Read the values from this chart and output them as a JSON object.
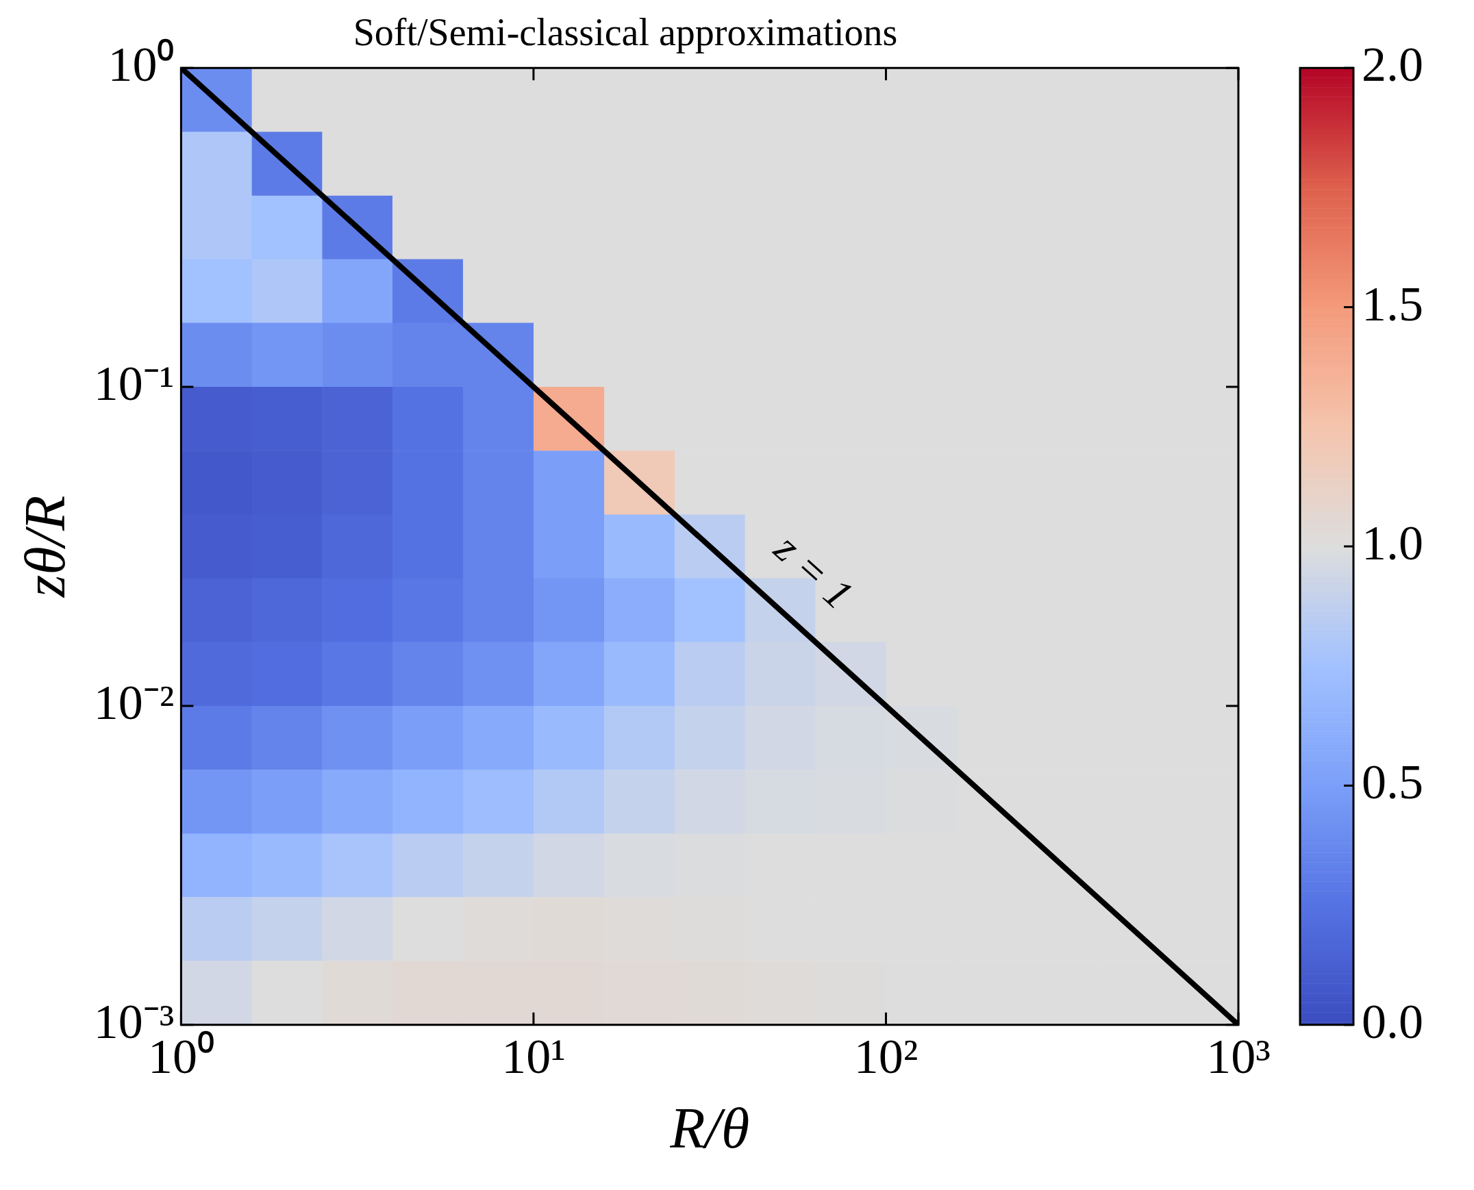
{
  "chart_data": {
    "type": "heatmap",
    "title": "Soft/Semi-classical approximations",
    "xlabel": "R/θ",
    "ylabel": "zθ/R",
    "log": "xy",
    "xlim": [
      1,
      1000
    ],
    "ylim": [
      0.001,
      1
    ],
    "xticks": [
      {
        "value": 1,
        "label": "10⁰"
      },
      {
        "value": 10,
        "label": "10¹"
      },
      {
        "value": 100,
        "label": "10²"
      },
      {
        "value": 1000,
        "label": "10³"
      }
    ],
    "yticks": [
      {
        "value": 0.001,
        "label": "10⁻³"
      },
      {
        "value": 0.01,
        "label": "10⁻²"
      },
      {
        "value": 0.1,
        "label": "10⁻¹"
      },
      {
        "value": 1,
        "label": "10⁰"
      }
    ],
    "clim": [
      0,
      2
    ],
    "cticks": [
      {
        "value": 0,
        "label": "0.0"
      },
      {
        "value": 0.5,
        "label": "0.5"
      },
      {
        "value": 1,
        "label": "1.0"
      },
      {
        "value": 1.5,
        "label": "1.5"
      },
      {
        "value": 2,
        "label": "2.0"
      }
    ],
    "x": [
      1.26,
      2,
      3.16,
      5.01,
      7.94,
      12.6,
      20,
      31.6,
      50.1,
      79.4,
      126,
      200,
      316,
      501,
      794
    ],
    "y": [
      0.794,
      0.501,
      0.316,
      0.2,
      0.126,
      0.0794,
      0.0501,
      0.0316,
      0.02,
      0.0126,
      0.00794,
      0.00501,
      0.00316,
      0.002,
      0.00126
    ],
    "cells": [
      [
        0.4,
        1,
        1,
        1,
        1,
        1,
        1,
        1,
        1,
        1,
        1,
        1,
        1,
        1,
        1
      ],
      [
        0.8,
        0.3,
        1,
        1,
        1,
        1,
        1,
        1,
        1,
        1,
        1,
        1,
        1,
        1,
        1
      ],
      [
        0.8,
        0.75,
        0.3,
        1,
        1,
        1,
        1,
        1,
        1,
        1,
        1,
        1,
        1,
        1,
        1
      ],
      [
        0.75,
        0.8,
        0.55,
        0.3,
        1,
        1,
        1,
        1,
        1,
        1,
        1,
        1,
        1,
        1,
        1
      ],
      [
        0.4,
        0.45,
        0.4,
        0.35,
        0.35,
        1,
        1,
        1,
        1,
        1,
        1,
        1,
        1,
        1,
        1
      ],
      [
        0.1,
        0.12,
        0.15,
        0.25,
        0.35,
        1.4,
        1,
        1,
        1,
        1,
        1,
        1,
        1,
        1,
        1
      ],
      [
        0.08,
        0.1,
        0.15,
        0.25,
        0.35,
        0.5,
        1.2,
        1,
        1,
        1,
        1,
        1,
        1,
        1,
        1
      ],
      [
        0.1,
        0.12,
        0.18,
        0.25,
        0.35,
        0.5,
        0.7,
        0.85,
        1,
        1,
        1,
        1,
        1,
        1,
        1
      ],
      [
        0.15,
        0.18,
        0.22,
        0.28,
        0.35,
        0.45,
        0.6,
        0.75,
        0.9,
        1,
        1,
        1,
        1,
        1,
        1
      ],
      [
        0.2,
        0.22,
        0.28,
        0.35,
        0.42,
        0.55,
        0.7,
        0.85,
        0.92,
        0.95,
        1,
        1,
        1,
        1,
        1
      ],
      [
        0.3,
        0.35,
        0.42,
        0.5,
        0.58,
        0.7,
        0.82,
        0.9,
        0.95,
        0.97,
        0.98,
        1,
        1,
        1,
        1
      ],
      [
        0.45,
        0.5,
        0.58,
        0.65,
        0.72,
        0.82,
        0.9,
        0.95,
        0.97,
        0.98,
        0.99,
        1,
        1,
        1,
        1
      ],
      [
        0.65,
        0.7,
        0.78,
        0.85,
        0.9,
        0.95,
        0.98,
        0.99,
        1,
        1,
        1,
        1,
        1,
        1,
        1
      ],
      [
        0.85,
        0.9,
        0.95,
        1,
        1.02,
        1.03,
        1.02,
        1.01,
        1,
        1,
        1,
        1,
        1,
        1,
        1
      ],
      [
        0.95,
        1,
        1.03,
        1.05,
        1.05,
        1.05,
        1.04,
        1.03,
        1.02,
        1.01,
        1,
        1,
        1,
        1,
        1
      ]
    ],
    "series": [
      {
        "type": "line",
        "color": "#000000",
        "x": [
          1,
          1000
        ],
        "values": [
          1,
          0.001
        ]
      }
    ],
    "annotations": [
      "z = 1"
    ]
  }
}
